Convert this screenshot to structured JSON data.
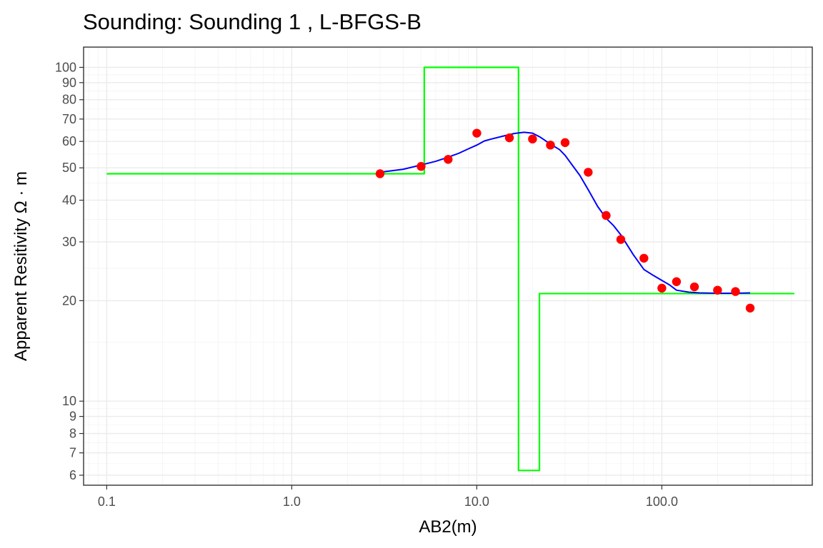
{
  "chart_data": {
    "type": "scatter",
    "title": "Sounding:  Sounding 1 , L-BFGS-B",
    "xlabel": "AB2(m)",
    "ylabel": "Apparent Resitivity Ω · m",
    "x_scale": "log10",
    "y_scale": "log10",
    "xlim": [
      0.075,
      650
    ],
    "ylim": [
      5.6,
      115
    ],
    "x_ticks": [
      0.1,
      1,
      10,
      100
    ],
    "x_tick_labels": [
      "0.1",
      "1.0",
      "10.0",
      "100.0"
    ],
    "y_ticks": [
      6,
      7,
      8,
      9,
      10,
      20,
      30,
      40,
      50,
      60,
      70,
      80,
      90,
      100
    ],
    "y_tick_labels": [
      "6",
      "7",
      "8",
      "9",
      "10",
      "20",
      "30",
      "40",
      "50",
      "60",
      "70",
      "80",
      "90",
      "100"
    ],
    "grid": true,
    "series": [
      {
        "kind": "points",
        "color": "#ff0000",
        "x": [
          3,
          5,
          7,
          10,
          15,
          20,
          25,
          30,
          40,
          50,
          60,
          80,
          100,
          120,
          150,
          200,
          250,
          300
        ],
        "y": [
          48.0,
          50.5,
          53.0,
          63.5,
          61.5,
          61.0,
          58.5,
          59.5,
          48.5,
          36.0,
          30.5,
          26.8,
          21.8,
          22.8,
          22.0,
          21.5,
          21.3,
          19.0
        ]
      },
      {
        "kind": "line",
        "color": "#0000ff",
        "x": [
          3,
          4,
          5,
          6,
          7,
          8,
          9,
          10,
          11,
          12,
          14,
          16,
          18,
          20,
          22,
          25,
          28,
          30,
          33,
          36,
          40,
          45,
          50,
          55,
          60,
          70,
          80,
          90,
          100,
          110,
          120,
          140,
          160,
          200,
          250,
          300
        ],
        "y": [
          48.5,
          49.5,
          51.0,
          52.3,
          53.8,
          55.3,
          57.0,
          58.5,
          60.2,
          61.0,
          62.3,
          63.4,
          63.9,
          63.5,
          61.8,
          58.9,
          56.7,
          54.5,
          50.7,
          47.5,
          43.0,
          38.3,
          35.3,
          33.5,
          31.5,
          27.5,
          24.8,
          23.8,
          23.0,
          22.3,
          21.5,
          21.2,
          21.1,
          21.05,
          21.05,
          21.1
        ]
      },
      {
        "kind": "step",
        "color": "#00ff00",
        "x": [
          0.1,
          5.2,
          5.2,
          16.8,
          16.8,
          21.8,
          21.8,
          520
        ],
        "y": [
          48,
          48,
          100,
          100,
          6.2,
          6.2,
          21,
          21
        ]
      }
    ]
  }
}
